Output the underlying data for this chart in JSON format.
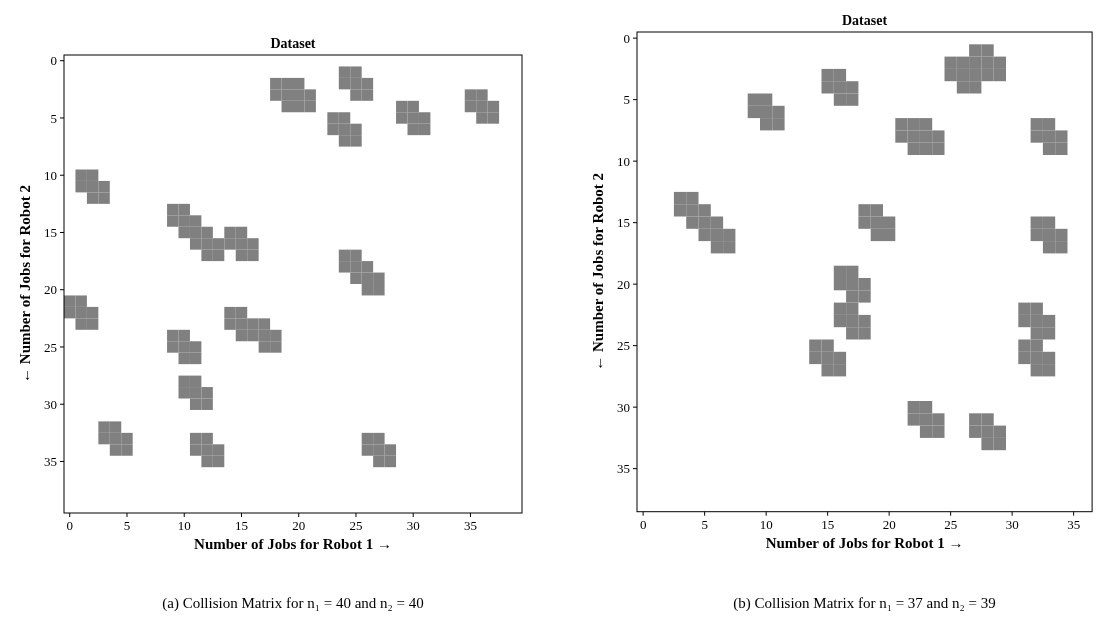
{
  "chart_data": [
    {
      "type": "scatter",
      "title": "Dataset",
      "xlabel": "Number of Jobs for Robot 1 →",
      "ylabel": "← Number of Jobs for Robot 2",
      "xlim": [
        -0.5,
        39.5
      ],
      "ylim": [
        39.5,
        -0.5
      ],
      "xticks": [
        0,
        5,
        10,
        15,
        20,
        25,
        30,
        35
      ],
      "yticks": [
        0,
        5,
        10,
        15,
        20,
        25,
        30,
        35
      ],
      "color": "#808080",
      "marker": "square",
      "annotations": [
        "(a) Collision Matrix for n₁ = 40 and n₂ = 40"
      ],
      "x": [
        18,
        19,
        20,
        18,
        19,
        20,
        21,
        19,
        20,
        21,
        24,
        25,
        24,
        25,
        26,
        25,
        26,
        23,
        24,
        23,
        24,
        25,
        24,
        25,
        29,
        30,
        29,
        30,
        31,
        30,
        31,
        35,
        36,
        35,
        36,
        37,
        36,
        37,
        1,
        2,
        1,
        2,
        3,
        2,
        3,
        9,
        10,
        9,
        10,
        11,
        10,
        11,
        12,
        11,
        12,
        13,
        12,
        13,
        14,
        15,
        14,
        15,
        16,
        15,
        16,
        24,
        25,
        24,
        25,
        26,
        25,
        26,
        27,
        26,
        27,
        0,
        1,
        0,
        1,
        2,
        1,
        2,
        14,
        15,
        14,
        15,
        16,
        17,
        15,
        16,
        17,
        18,
        17,
        18,
        9,
        10,
        9,
        10,
        11,
        10,
        11,
        10,
        11,
        10,
        11,
        12,
        11,
        12,
        3,
        4,
        3,
        4,
        5,
        4,
        5,
        11,
        12,
        11,
        12,
        13,
        12,
        13,
        26,
        27,
        26,
        27,
        28,
        27,
        28
      ],
      "values": [
        2,
        2,
        2,
        3,
        3,
        3,
        3,
        4,
        4,
        4,
        1,
        1,
        2,
        2,
        2,
        3,
        3,
        5,
        5,
        6,
        6,
        6,
        7,
        7,
        4,
        4,
        5,
        5,
        5,
        6,
        6,
        3,
        3,
        4,
        4,
        4,
        5,
        5,
        10,
        10,
        11,
        11,
        11,
        12,
        12,
        13,
        13,
        14,
        14,
        14,
        15,
        15,
        15,
        16,
        16,
        16,
        17,
        17,
        15,
        15,
        16,
        16,
        16,
        17,
        17,
        17,
        17,
        18,
        18,
        18,
        19,
        19,
        19,
        20,
        20,
        21,
        21,
        22,
        22,
        22,
        23,
        23,
        22,
        22,
        23,
        23,
        23,
        23,
        24,
        24,
        24,
        24,
        25,
        25,
        24,
        24,
        25,
        25,
        25,
        26,
        26,
        28,
        28,
        29,
        29,
        29,
        30,
        30,
        32,
        32,
        33,
        33,
        33,
        34,
        34,
        33,
        33,
        34,
        34,
        34,
        35,
        35,
        33,
        33,
        34,
        34,
        34,
        35,
        35
      ]
    },
    {
      "type": "scatter",
      "title": "Dataset",
      "xlabel": "Number of Jobs for Robot 1 →",
      "ylabel": "← Number of Jobs for Robot 2",
      "xlim": [
        -0.5,
        36.5
      ],
      "ylim": [
        38.5,
        -0.5
      ],
      "xticks": [
        0,
        5,
        10,
        15,
        20,
        25,
        30,
        35
      ],
      "yticks": [
        0,
        5,
        10,
        15,
        20,
        25,
        30,
        35
      ],
      "color": "#808080",
      "marker": "square",
      "annotations": [
        "(b) Collision Matrix for n₁ = 37 and n₂ = 39"
      ],
      "x": [
        15,
        16,
        15,
        16,
        17,
        16,
        17,
        9,
        10,
        9,
        10,
        11,
        10,
        11,
        27,
        28,
        25,
        26,
        27,
        28,
        29,
        25,
        26,
        27,
        28,
        29,
        26,
        27,
        21,
        22,
        23,
        21,
        22,
        23,
        24,
        22,
        23,
        24,
        32,
        33,
        32,
        33,
        34,
        33,
        34,
        3,
        4,
        3,
        4,
        5,
        4,
        5,
        6,
        5,
        6,
        7,
        6,
        7,
        18,
        19,
        18,
        19,
        20,
        19,
        20,
        32,
        33,
        32,
        33,
        34,
        33,
        34,
        16,
        17,
        16,
        17,
        18,
        17,
        18,
        16,
        17,
        16,
        17,
        18,
        17,
        18,
        31,
        32,
        31,
        32,
        33,
        32,
        33,
        31,
        32,
        31,
        32,
        33,
        32,
        33,
        14,
        15,
        14,
        15,
        16,
        15,
        16,
        22,
        23,
        22,
        23,
        24,
        23,
        24,
        27,
        28,
        27,
        28,
        29,
        28,
        29
      ],
      "values": [
        3,
        3,
        4,
        4,
        4,
        5,
        5,
        5,
        5,
        6,
        6,
        6,
        7,
        7,
        1,
        1,
        2,
        2,
        2,
        2,
        2,
        3,
        3,
        3,
        3,
        3,
        4,
        4,
        7,
        7,
        7,
        8,
        8,
        8,
        8,
        9,
        9,
        9,
        7,
        7,
        8,
        8,
        8,
        9,
        9,
        13,
        13,
        14,
        14,
        14,
        15,
        15,
        15,
        16,
        16,
        16,
        17,
        17,
        14,
        14,
        15,
        15,
        15,
        16,
        16,
        15,
        15,
        16,
        16,
        16,
        17,
        17,
        19,
        19,
        20,
        20,
        20,
        21,
        21,
        22,
        22,
        23,
        23,
        23,
        24,
        24,
        22,
        22,
        23,
        23,
        23,
        24,
        24,
        25,
        25,
        26,
        26,
        26,
        27,
        27,
        25,
        25,
        26,
        26,
        26,
        27,
        27,
        30,
        30,
        31,
        31,
        31,
        32,
        32,
        31,
        31,
        32,
        32,
        32,
        33,
        33
      ]
    }
  ]
}
